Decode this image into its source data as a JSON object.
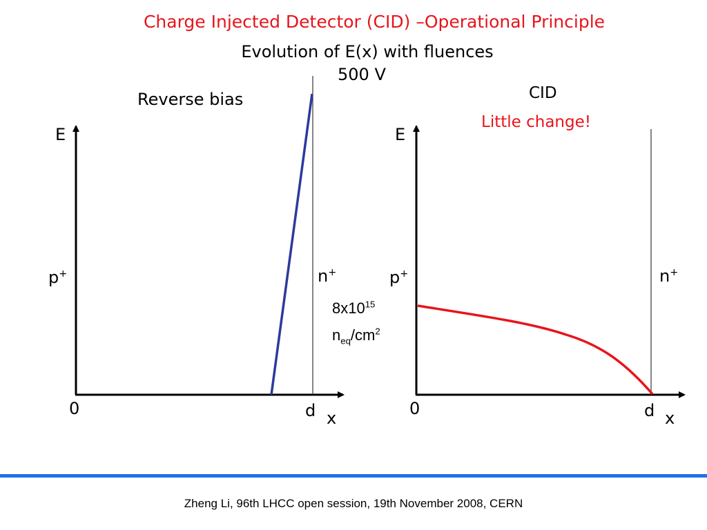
{
  "slide": {
    "title": "Charge Injected Detector (CID) –Operational Principle",
    "subtitle": "Evolution of E(x) with fluences",
    "voltage": "500 V"
  },
  "left_panel": {
    "label": "Reverse bias",
    "y_axis_label": "E",
    "x_axis_label": "x",
    "origin_label": "0",
    "thickness_label": "d",
    "p_side": "p",
    "n_side": "n",
    "plus": "+",
    "line_color": "#2b3a9b"
  },
  "right_panel": {
    "label": "CID",
    "note": "Little change!",
    "y_axis_label": "E",
    "x_axis_label": "x",
    "origin_label": "0",
    "thickness_label": "d",
    "p_side": "p",
    "n_side": "n",
    "plus": "+",
    "line_color": "#e8141b"
  },
  "fluence": {
    "mantissa": "8x10",
    "exponent": "15",
    "unit_n": "n",
    "unit_sub": "eq",
    "unit_cm": "/cm",
    "unit_exp": "2"
  },
  "footer": {
    "text": "Zheng Li, 96th LHCC open session, 19th November 2008, CERN",
    "bar_color": "#1f72e6"
  }
}
